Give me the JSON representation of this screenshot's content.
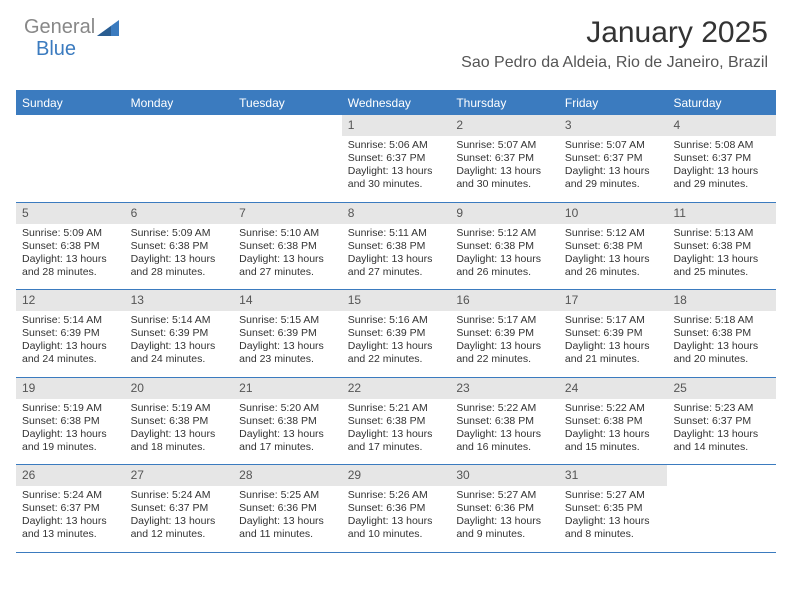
{
  "logo": {
    "text1": "General",
    "text2": "Blue"
  },
  "title": "January 2025",
  "subtitle": "Sao Pedro da Aldeia, Rio de Janeiro, Brazil",
  "colors": {
    "accent": "#3b7bbf",
    "header_bg": "#3b7bbf",
    "header_text": "#ffffff",
    "daynum_bg": "#e6e6e6",
    "text": "#333333",
    "page_bg": "#ffffff"
  },
  "day_labels": [
    "Sunday",
    "Monday",
    "Tuesday",
    "Wednesday",
    "Thursday",
    "Friday",
    "Saturday"
  ],
  "grid": {
    "rows": 5,
    "cols": 7,
    "first_day_col": 3,
    "days_in_month": 31
  },
  "days": [
    {
      "n": 1,
      "sunrise": "5:06 AM",
      "sunset": "6:37 PM",
      "daylight": "13 hours and 30 minutes."
    },
    {
      "n": 2,
      "sunrise": "5:07 AM",
      "sunset": "6:37 PM",
      "daylight": "13 hours and 30 minutes."
    },
    {
      "n": 3,
      "sunrise": "5:07 AM",
      "sunset": "6:37 PM",
      "daylight": "13 hours and 29 minutes."
    },
    {
      "n": 4,
      "sunrise": "5:08 AM",
      "sunset": "6:37 PM",
      "daylight": "13 hours and 29 minutes."
    },
    {
      "n": 5,
      "sunrise": "5:09 AM",
      "sunset": "6:38 PM",
      "daylight": "13 hours and 28 minutes."
    },
    {
      "n": 6,
      "sunrise": "5:09 AM",
      "sunset": "6:38 PM",
      "daylight": "13 hours and 28 minutes."
    },
    {
      "n": 7,
      "sunrise": "5:10 AM",
      "sunset": "6:38 PM",
      "daylight": "13 hours and 27 minutes."
    },
    {
      "n": 8,
      "sunrise": "5:11 AM",
      "sunset": "6:38 PM",
      "daylight": "13 hours and 27 minutes."
    },
    {
      "n": 9,
      "sunrise": "5:12 AM",
      "sunset": "6:38 PM",
      "daylight": "13 hours and 26 minutes."
    },
    {
      "n": 10,
      "sunrise": "5:12 AM",
      "sunset": "6:38 PM",
      "daylight": "13 hours and 26 minutes."
    },
    {
      "n": 11,
      "sunrise": "5:13 AM",
      "sunset": "6:38 PM",
      "daylight": "13 hours and 25 minutes."
    },
    {
      "n": 12,
      "sunrise": "5:14 AM",
      "sunset": "6:39 PM",
      "daylight": "13 hours and 24 minutes."
    },
    {
      "n": 13,
      "sunrise": "5:14 AM",
      "sunset": "6:39 PM",
      "daylight": "13 hours and 24 minutes."
    },
    {
      "n": 14,
      "sunrise": "5:15 AM",
      "sunset": "6:39 PM",
      "daylight": "13 hours and 23 minutes."
    },
    {
      "n": 15,
      "sunrise": "5:16 AM",
      "sunset": "6:39 PM",
      "daylight": "13 hours and 22 minutes."
    },
    {
      "n": 16,
      "sunrise": "5:17 AM",
      "sunset": "6:39 PM",
      "daylight": "13 hours and 22 minutes."
    },
    {
      "n": 17,
      "sunrise": "5:17 AM",
      "sunset": "6:39 PM",
      "daylight": "13 hours and 21 minutes."
    },
    {
      "n": 18,
      "sunrise": "5:18 AM",
      "sunset": "6:38 PM",
      "daylight": "13 hours and 20 minutes."
    },
    {
      "n": 19,
      "sunrise": "5:19 AM",
      "sunset": "6:38 PM",
      "daylight": "13 hours and 19 minutes."
    },
    {
      "n": 20,
      "sunrise": "5:19 AM",
      "sunset": "6:38 PM",
      "daylight": "13 hours and 18 minutes."
    },
    {
      "n": 21,
      "sunrise": "5:20 AM",
      "sunset": "6:38 PM",
      "daylight": "13 hours and 17 minutes."
    },
    {
      "n": 22,
      "sunrise": "5:21 AM",
      "sunset": "6:38 PM",
      "daylight": "13 hours and 17 minutes."
    },
    {
      "n": 23,
      "sunrise": "5:22 AM",
      "sunset": "6:38 PM",
      "daylight": "13 hours and 16 minutes."
    },
    {
      "n": 24,
      "sunrise": "5:22 AM",
      "sunset": "6:38 PM",
      "daylight": "13 hours and 15 minutes."
    },
    {
      "n": 25,
      "sunrise": "5:23 AM",
      "sunset": "6:37 PM",
      "daylight": "13 hours and 14 minutes."
    },
    {
      "n": 26,
      "sunrise": "5:24 AM",
      "sunset": "6:37 PM",
      "daylight": "13 hours and 13 minutes."
    },
    {
      "n": 27,
      "sunrise": "5:24 AM",
      "sunset": "6:37 PM",
      "daylight": "13 hours and 12 minutes."
    },
    {
      "n": 28,
      "sunrise": "5:25 AM",
      "sunset": "6:36 PM",
      "daylight": "13 hours and 11 minutes."
    },
    {
      "n": 29,
      "sunrise": "5:26 AM",
      "sunset": "6:36 PM",
      "daylight": "13 hours and 10 minutes."
    },
    {
      "n": 30,
      "sunrise": "5:27 AM",
      "sunset": "6:36 PM",
      "daylight": "13 hours and 9 minutes."
    },
    {
      "n": 31,
      "sunrise": "5:27 AM",
      "sunset": "6:35 PM",
      "daylight": "13 hours and 8 minutes."
    }
  ],
  "labels": {
    "sunrise": "Sunrise: ",
    "sunset": "Sunset: ",
    "daylight": "Daylight: "
  }
}
